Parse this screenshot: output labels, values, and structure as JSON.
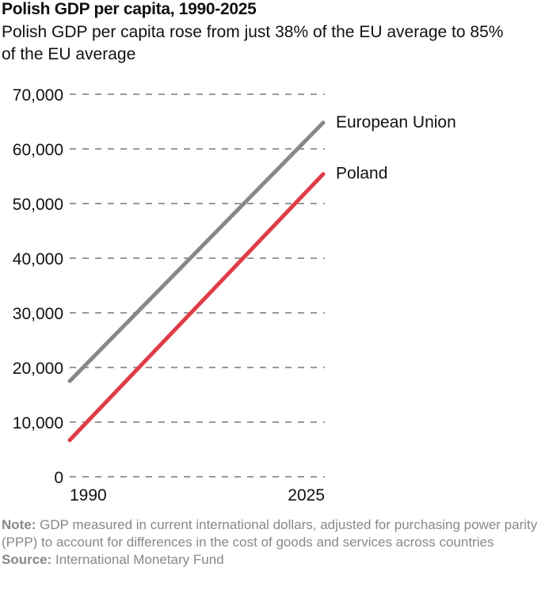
{
  "chart_data": {
    "type": "line",
    "title": "Polish GDP per capita, 1990-2025",
    "subtitle": "Polish GDP per capita rose from just 38% of the EU average to 85% of the EU average",
    "x": [
      1990,
      2025
    ],
    "x_ticks": [
      "1990",
      "2025"
    ],
    "ylim": [
      0,
      70000
    ],
    "y_ticks": [
      "0",
      "10,000",
      "20,000",
      "30,000",
      "40,000",
      "50,000",
      "60,000",
      "70,000"
    ],
    "y_tick_values": [
      0,
      10000,
      20000,
      30000,
      40000,
      50000,
      60000,
      70000
    ],
    "grid": true,
    "legend": "direct labels at line ends",
    "series": [
      {
        "name": "European Union",
        "values": [
          17500,
          64800
        ],
        "color": "#888888"
      },
      {
        "name": "Poland",
        "values": [
          6700,
          55400
        ],
        "color": "#e03c47"
      }
    ]
  },
  "notes": {
    "note_label": "Note:",
    "note_text": " GDP measured in current international dollars, adjusted for purchasing power parity (PPP) to account for differences in the cost of goods and services across countries",
    "source_label": "Source:",
    "source_text": " International Monetary Fund"
  }
}
